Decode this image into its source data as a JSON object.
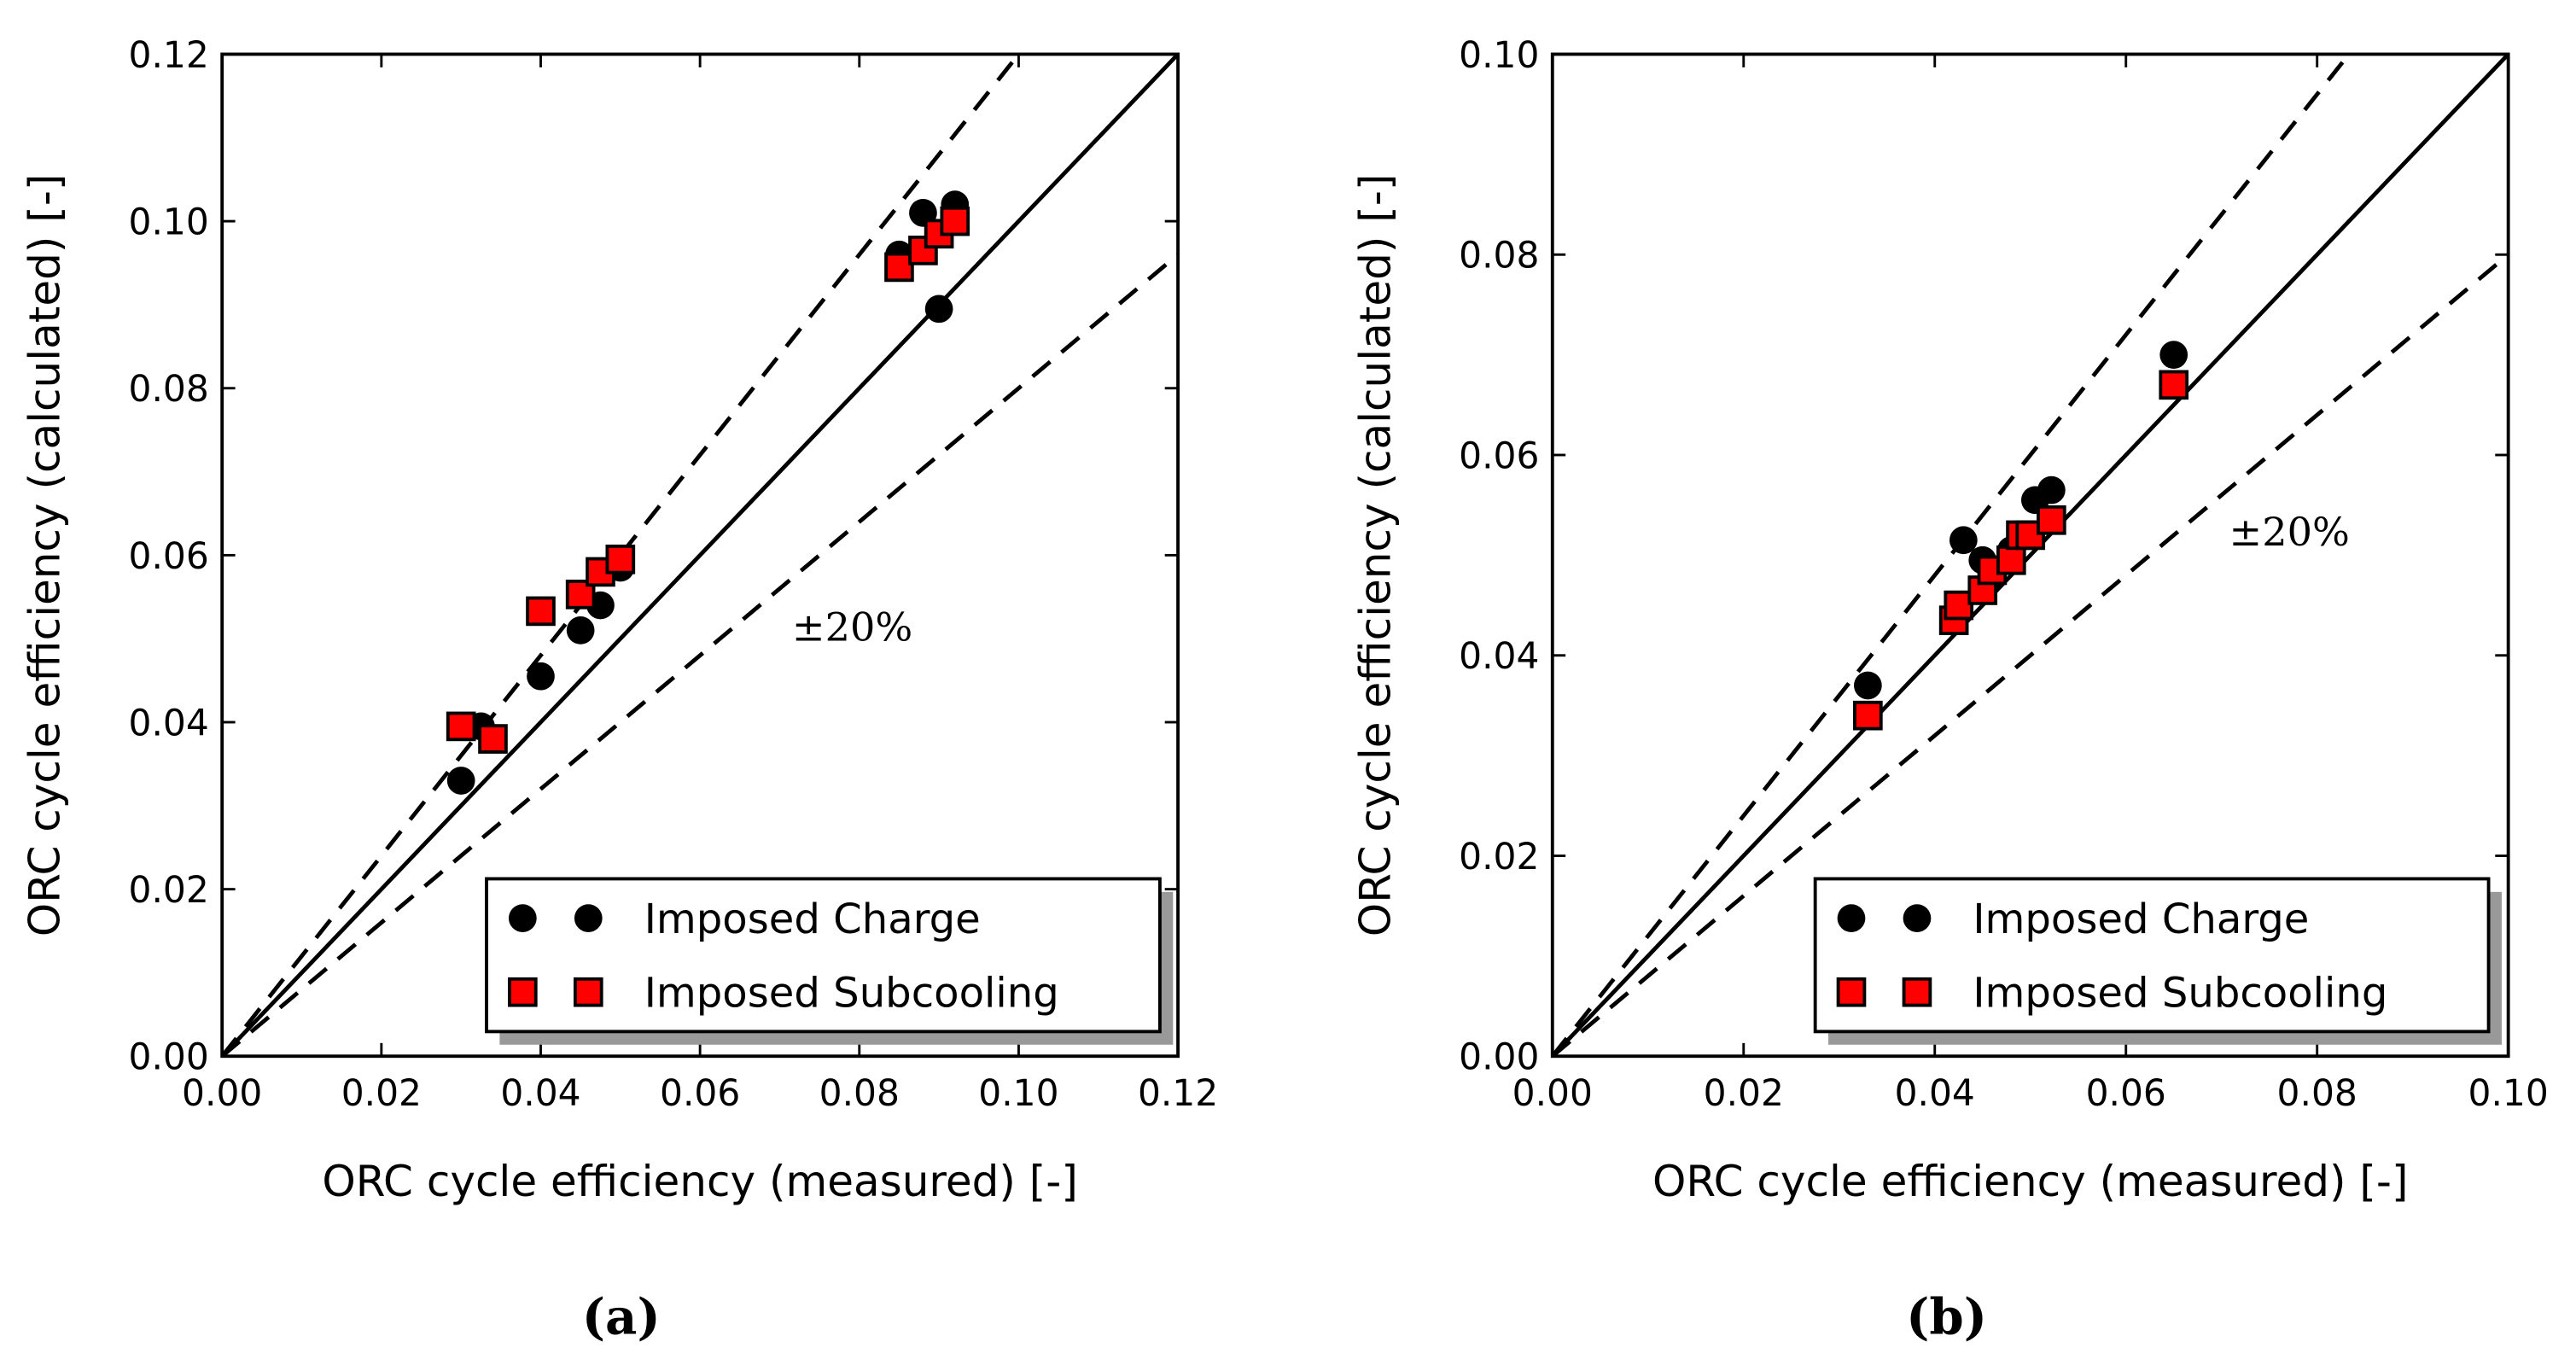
{
  "chart_data": [
    {
      "type": "scatter",
      "panel_label": "(a)",
      "xlabel": "ORC cycle efficiency (measured) [-]",
      "ylabel": "ORC cycle efficiency (calculated) [-]",
      "xlim": [
        0,
        0.12
      ],
      "ylim": [
        0,
        0.12
      ],
      "xticks": [
        "0.00",
        "0.02",
        "0.04",
        "0.06",
        "0.08",
        "0.10",
        "0.12"
      ],
      "yticks": [
        "0.00",
        "0.02",
        "0.04",
        "0.06",
        "0.08",
        "0.10",
        "0.12"
      ],
      "annotation": "±20%",
      "reference_lines": [
        {
          "slope": 1.0,
          "style": "solid"
        },
        {
          "slope": 1.2,
          "style": "dashed"
        },
        {
          "slope": 0.8,
          "style": "dashed"
        }
      ],
      "legend_position": "lower-right",
      "series": [
        {
          "name": "Imposed Charge",
          "marker": "circle",
          "color": "#000000",
          "x": [
            0.03,
            0.0325,
            0.04,
            0.045,
            0.0475,
            0.05,
            0.085,
            0.088,
            0.092,
            0.09
          ],
          "y": [
            0.033,
            0.0395,
            0.0455,
            0.051,
            0.054,
            0.0585,
            0.096,
            0.101,
            0.102,
            0.0895
          ]
        },
        {
          "name": "Imposed Subcooling",
          "marker": "square",
          "color": "#ff0000",
          "x": [
            0.03,
            0.034,
            0.04,
            0.045,
            0.0475,
            0.05,
            0.085,
            0.088,
            0.09,
            0.092
          ],
          "y": [
            0.0395,
            0.038,
            0.0533,
            0.0553,
            0.058,
            0.0595,
            0.0945,
            0.0965,
            0.0985,
            0.1
          ]
        }
      ]
    },
    {
      "type": "scatter",
      "panel_label": "(b)",
      "xlabel": "ORC cycle efficiency (measured) [-]",
      "ylabel": "ORC cycle efficiency (calculated) [-]",
      "xlim": [
        0,
        0.1
      ],
      "ylim": [
        0,
        0.1
      ],
      "xticks": [
        "0.00",
        "0.02",
        "0.04",
        "0.06",
        "0.08",
        "0.10"
      ],
      "yticks": [
        "0.00",
        "0.02",
        "0.04",
        "0.06",
        "0.08",
        "0.10"
      ],
      "annotation": "±20%",
      "reference_lines": [
        {
          "slope": 1.0,
          "style": "solid"
        },
        {
          "slope": 1.2,
          "style": "dashed"
        },
        {
          "slope": 0.8,
          "style": "dashed"
        }
      ],
      "legend_position": "lower-right",
      "series": [
        {
          "name": "Imposed Charge",
          "marker": "circle",
          "color": "#000000",
          "x": [
            0.033,
            0.043,
            0.045,
            0.046,
            0.048,
            0.049,
            0.0505,
            0.0522,
            0.065
          ],
          "y": [
            0.037,
            0.0515,
            0.0495,
            0.048,
            0.0505,
            0.052,
            0.0555,
            0.0565,
            0.07
          ]
        },
        {
          "name": "Imposed Subcooling",
          "marker": "square",
          "color": "#ff0000",
          "x": [
            0.033,
            0.042,
            0.0425,
            0.045,
            0.046,
            0.048,
            0.049,
            0.05,
            0.0522,
            0.065
          ],
          "y": [
            0.034,
            0.0435,
            0.045,
            0.0465,
            0.0485,
            0.0495,
            0.052,
            0.052,
            0.0535,
            0.067
          ]
        }
      ]
    }
  ]
}
